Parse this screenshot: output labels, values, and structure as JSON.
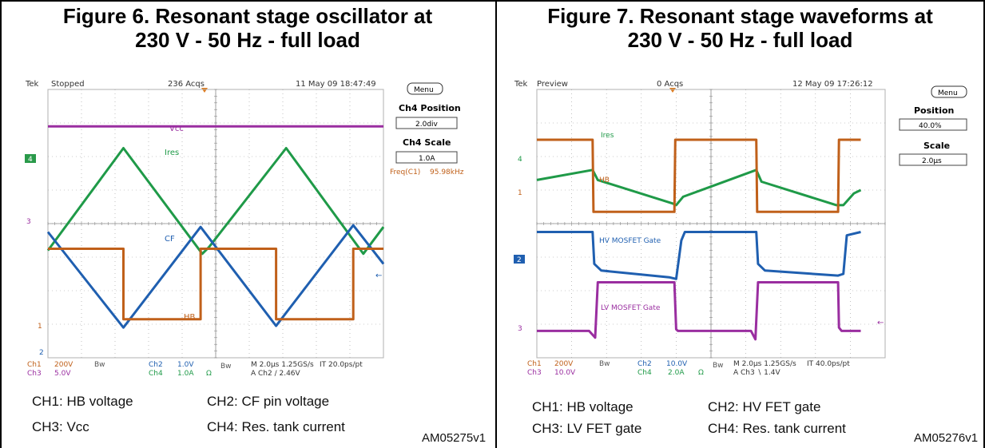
{
  "colors": {
    "ch1": "#c0601a",
    "ch2": "#1f5fb0",
    "ch3": "#9a2ea0",
    "ch4": "#1f9a48",
    "grid": "#9a9a9a",
    "marker": "#2a9a4a"
  },
  "left": {
    "title_line1": "Figure 6. Resonant stage oscillator at",
    "title_line2": "230 V - 50 Hz - full load",
    "scope": {
      "brand": "Tek",
      "state": "Stopped",
      "acqs": "236 Acqs",
      "timestamp": "11 May 09 18:47:49",
      "menu": "Menu",
      "side": [
        {
          "label": "Ch4 Position",
          "value": "2.0div"
        },
        {
          "label": "Ch4 Scale",
          "value": "1.0A"
        }
      ],
      "freq_label": "Freq(C1)",
      "freq_value": "95.98kHz",
      "trace_labels": {
        "vcc": "Vcc",
        "ires": "Ires",
        "cf": "CF",
        "hb": "HB"
      },
      "markers": {
        "m4": "4",
        "m3": "3",
        "m1": "1",
        "m2": "2"
      },
      "bottom_row1": [
        "Ch1",
        "200V",
        "Bw",
        "Ch2",
        "1.0V",
        "Bw",
        "M 2.0μs 1.25GS/s",
        "IT 20.0ps/pt"
      ],
      "bottom_row2": [
        "Ch3",
        "5.0V",
        "Bw",
        "Ch4",
        "1.0A",
        "Ω",
        "A  Ch2  ∕  2.46V"
      ]
    },
    "captions": [
      "CH1:  HB voltage",
      "CH2:  CF pin voltage",
      "CH3:  Vcc",
      "CH4:  Res. tank current"
    ],
    "ref": "AM05275v1"
  },
  "right": {
    "title_line1": "Figure 7. Resonant stage waveforms at",
    "title_line2": "230 V - 50 Hz - full load",
    "scope": {
      "brand": "Tek",
      "state": "Preview",
      "acqs": "0 Acqs",
      "timestamp": "12 May 09 17:26:12",
      "menu": "Menu",
      "side": [
        {
          "label": "Position",
          "value": "40.0%"
        },
        {
          "label": "Scale",
          "value": "2.0μs"
        }
      ],
      "trace_labels": {
        "ires": "Ires",
        "hb": "HB",
        "hv": "HV MOSFET Gate",
        "lv": "LV MOSFET Gate"
      },
      "markers": {
        "m4": "4",
        "m1": "1",
        "m2": "2",
        "m3": "3"
      },
      "bottom_row1": [
        "Ch1",
        "200V",
        "Bw",
        "Ch2",
        "10.0V",
        "Bw",
        "M 2.0μs 1.25GS/s",
        "IT 40.0ps/pt"
      ],
      "bottom_row2": [
        "Ch3",
        "10.0V",
        "Bw",
        "Ch4",
        "2.0A",
        "Ω",
        "A  Ch3  ∖  1.4V"
      ]
    },
    "captions": [
      "CH1:  HB voltage",
      "CH2:  HV FET gate",
      "CH3:  LV FET gate",
      "CH4:  Res. tank current"
    ],
    "ref": "AM05276v1"
  },
  "chart_data": [
    {
      "type": "line",
      "title": "Figure 6. Resonant stage oscillator at 230 V - 50 Hz - full load",
      "xlabel": "",
      "ylabel": "",
      "x_unit": "μs",
      "x_range": [
        0,
        20
      ],
      "y_unit": "div",
      "y_range": [
        -4,
        4
      ],
      "grid": true,
      "series": [
        {
          "name": "Vcc",
          "x": [
            0,
            20
          ],
          "y": [
            2.9,
            2.9
          ]
        },
        {
          "name": "Ires",
          "x": [
            0,
            4.5,
            9.2,
            9.6,
            14.2,
            18.8,
            20
          ],
          "y": [
            -0.8,
            2.25,
            -0.9,
            -0.7,
            2.25,
            -0.9,
            -0.1
          ]
        },
        {
          "name": "CF",
          "x": [
            0,
            4.5,
            9.1,
            13.6,
            18.2,
            20
          ],
          "y": [
            -0.25,
            -3.1,
            -0.1,
            -3.05,
            -0.05,
            -1.2
          ]
        },
        {
          "name": "HB",
          "x": [
            0,
            4.5,
            4.5,
            9.1,
            9.1,
            13.6,
            13.6,
            18.2,
            18.2,
            20
          ],
          "y": [
            -0.75,
            -0.75,
            -2.85,
            -2.85,
            -0.75,
            -0.75,
            -2.85,
            -2.85,
            -0.75,
            -0.75
          ]
        }
      ]
    },
    {
      "type": "line",
      "title": "Figure 7. Resonant stage waveforms at 230 V - 50 Hz - full load",
      "xlabel": "",
      "ylabel": "",
      "x_unit": "μs",
      "x_range": [
        0,
        20
      ],
      "y_unit": "div",
      "y_range": [
        -4,
        4
      ],
      "grid": true,
      "series": [
        {
          "name": "Ires",
          "x": [
            0,
            3.2,
            3.5,
            7.8,
            8.0,
            8.4,
            12.6,
            12.9,
            17.2,
            17.6,
            18.2,
            18.6
          ],
          "y": [
            1.3,
            1.6,
            1.3,
            0.6,
            0.55,
            0.8,
            1.6,
            1.25,
            0.55,
            0.55,
            0.9,
            1.0
          ]
        },
        {
          "name": "HB",
          "x": [
            0,
            3.2,
            3.25,
            7.9,
            7.95,
            12.6,
            12.65,
            17.3,
            17.35,
            18.6
          ],
          "y": [
            2.5,
            2.5,
            0.35,
            0.35,
            2.5,
            2.5,
            0.35,
            0.35,
            2.5,
            2.5
          ]
        },
        {
          "name": "HV MOSFET Gate",
          "x": [
            0,
            3.2,
            3.3,
            3.7,
            7.6,
            8.0,
            8.3,
            8.5,
            12.6,
            12.7,
            13.1,
            17.3,
            17.6,
            17.8,
            18.6
          ],
          "y": [
            -0.25,
            -0.25,
            -1.2,
            -1.4,
            -1.6,
            -1.65,
            -0.5,
            -0.25,
            -0.25,
            -1.2,
            -1.4,
            -1.55,
            -1.5,
            -0.35,
            -0.25
          ]
        },
        {
          "name": "LV MOSFET Gate",
          "x": [
            0,
            3.0,
            3.35,
            3.5,
            7.9,
            8.0,
            8.1,
            12.3,
            12.55,
            12.7,
            17.3,
            17.35,
            17.5,
            18.6
          ],
          "y": [
            -3.2,
            -3.2,
            -3.4,
            -1.75,
            -1.75,
            -3.15,
            -3.2,
            -3.2,
            -3.45,
            -1.75,
            -1.75,
            -3.1,
            -3.2,
            -3.2
          ]
        }
      ]
    }
  ]
}
